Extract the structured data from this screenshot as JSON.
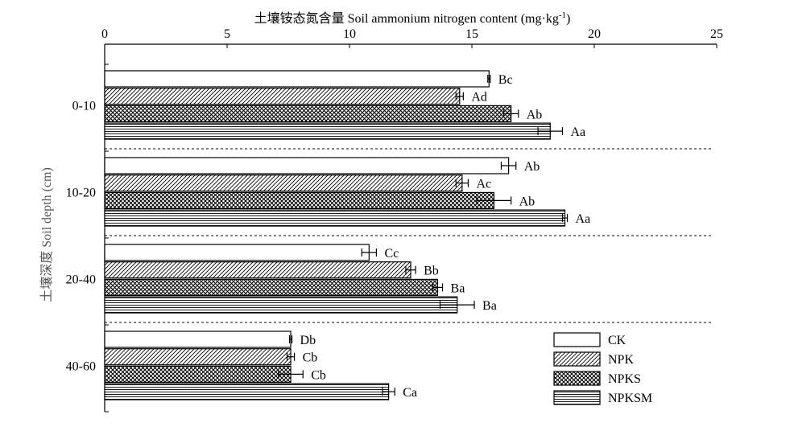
{
  "chart_data": {
    "type": "bar",
    "orientation": "horizontal",
    "title": "土壤铵态氮含量 Soil ammonium nitrogen content (mg·kg",
    "title_superscript": "-1",
    "title_suffix": ")",
    "ylabel": "土壤深度 Soil depth (cm)",
    "xlim": [
      0,
      25
    ],
    "x_ticks": [
      "0",
      "5",
      "10",
      "15",
      "20",
      "25"
    ],
    "x_axis_position": "top",
    "categories": [
      "0-10",
      "10-20",
      "20-40",
      "40-60"
    ],
    "series": [
      {
        "name": "CK",
        "pattern": "plain",
        "values": [
          15.7,
          16.5,
          10.8,
          7.6
        ],
        "errors": [
          0.05,
          0.3,
          0.3,
          0.05
        ],
        "labels": [
          "Bc",
          "Ab",
          "Cc",
          "Db"
        ]
      },
      {
        "name": "NPK",
        "pattern": "diagonal-hatch",
        "values": [
          14.5,
          14.6,
          12.5,
          7.6
        ],
        "errors": [
          0.15,
          0.25,
          0.2,
          0.15
        ],
        "labels": [
          "Ad",
          "Ac",
          "Bb",
          "Cb"
        ]
      },
      {
        "name": "NPKS",
        "pattern": "crosshatch",
        "values": [
          16.6,
          15.9,
          13.6,
          7.6
        ],
        "errors": [
          0.3,
          0.7,
          0.2,
          0.5
        ],
        "labels": [
          "Ab",
          "Ab",
          "Ba",
          "Cb"
        ]
      },
      {
        "name": "NPKSM",
        "pattern": "horizontal-lines",
        "values": [
          18.2,
          18.8,
          14.4,
          11.6
        ],
        "errors": [
          0.5,
          0.1,
          0.7,
          0.25
        ],
        "labels": [
          "Aa",
          "Aa",
          "Ba",
          "Ca"
        ]
      }
    ],
    "group_separators": "dashed",
    "grid": false,
    "legend_position": "bottom-right"
  }
}
